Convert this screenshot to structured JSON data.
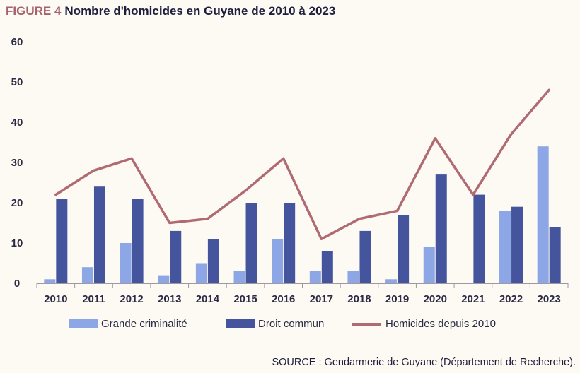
{
  "title": {
    "figure_label": "FIGURE 4",
    "text": "Nombre d'homicides en Guyane de 2010 à 2023"
  },
  "source": "SOURCE : Gendarmerie de Guyane (Département de Recherche).",
  "colors": {
    "grande_criminalite": "#8ca6e6",
    "droit_commun": "#44559e",
    "homicides": "#b06a72",
    "axis_text": "#2a2a44",
    "background": "#fdf9f3"
  },
  "chart_data": {
    "type": "bar",
    "categories": [
      "2010",
      "2011",
      "2012",
      "2013",
      "2014",
      "2015",
      "2016",
      "2017",
      "2018",
      "2019",
      "2020",
      "2021",
      "2022",
      "2023"
    ],
    "y_ticks": [
      0,
      10,
      20,
      30,
      40,
      50,
      60
    ],
    "ylim": [
      0,
      60
    ],
    "grid": false,
    "legend_position": "bottom",
    "series": [
      {
        "name": "Grande criminalité",
        "type": "bar",
        "values": [
          1,
          4,
          10,
          2,
          5,
          3,
          11,
          3,
          3,
          1,
          9,
          0,
          18,
          34
        ]
      },
      {
        "name": "Droit commun",
        "type": "bar",
        "values": [
          21,
          24,
          21,
          13,
          11,
          20,
          20,
          8,
          13,
          17,
          27,
          22,
          19,
          14
        ]
      },
      {
        "name": "Homicides depuis 2010",
        "type": "line",
        "values": [
          22,
          28,
          31,
          15,
          16,
          23,
          31,
          11,
          16,
          18,
          36,
          22,
          37,
          48
        ]
      }
    ]
  }
}
